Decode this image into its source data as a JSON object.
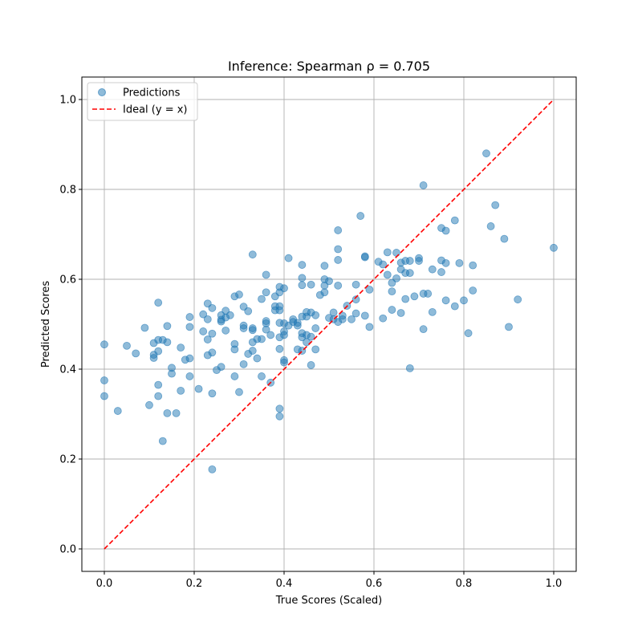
{
  "chart_data": {
    "type": "scatter",
    "title": "Inference: Spearman ρ = 0.705",
    "xlabel": "True Scores (Scaled)",
    "ylabel": "Predicted Scores",
    "xlim": [
      -0.05,
      1.05
    ],
    "ylim": [
      -0.05,
      1.05
    ],
    "x_ticks": [
      0.0,
      0.2,
      0.4,
      0.6,
      0.8,
      1.0
    ],
    "x_tick_labels": [
      "0.0",
      "0.2",
      "0.4",
      "0.6",
      "0.8",
      "1.0"
    ],
    "y_ticks": [
      0.0,
      0.2,
      0.4,
      0.6,
      0.8,
      1.0
    ],
    "y_tick_labels": [
      "0.0",
      "0.2",
      "0.4",
      "0.6",
      "0.8",
      "1.0"
    ],
    "grid": true,
    "legend": {
      "position": "top-left",
      "entries": [
        {
          "label": "Predictions",
          "marker": "circle"
        },
        {
          "label": "Ideal (y = x)",
          "marker": "dashed-line"
        }
      ]
    },
    "colors": {
      "points": "#1f77b4",
      "ideal": "#ff0000",
      "grid": "#b0b0b0"
    },
    "ideal_line": {
      "x": [
        0.0,
        1.0
      ],
      "y": [
        0.0,
        1.0
      ]
    },
    "series": [
      {
        "name": "Predictions",
        "points": [
          [
            0.0,
            0.455
          ],
          [
            0.0,
            0.375
          ],
          [
            0.0,
            0.34
          ],
          [
            0.03,
            0.307
          ],
          [
            0.05,
            0.452
          ],
          [
            0.07,
            0.435
          ],
          [
            0.09,
            0.492
          ],
          [
            0.1,
            0.32
          ],
          [
            0.11,
            0.458
          ],
          [
            0.11,
            0.432
          ],
          [
            0.11,
            0.425
          ],
          [
            0.12,
            0.548
          ],
          [
            0.12,
            0.465
          ],
          [
            0.12,
            0.44
          ],
          [
            0.12,
            0.365
          ],
          [
            0.12,
            0.34
          ],
          [
            0.13,
            0.24
          ],
          [
            0.13,
            0.465
          ],
          [
            0.14,
            0.496
          ],
          [
            0.14,
            0.46
          ],
          [
            0.14,
            0.302
          ],
          [
            0.15,
            0.403
          ],
          [
            0.15,
            0.39
          ],
          [
            0.16,
            0.302
          ],
          [
            0.17,
            0.448
          ],
          [
            0.17,
            0.352
          ],
          [
            0.18,
            0.421
          ],
          [
            0.19,
            0.516
          ],
          [
            0.19,
            0.494
          ],
          [
            0.19,
            0.424
          ],
          [
            0.19,
            0.384
          ],
          [
            0.21,
            0.356
          ],
          [
            0.22,
            0.522
          ],
          [
            0.22,
            0.484
          ],
          [
            0.23,
            0.546
          ],
          [
            0.23,
            0.511
          ],
          [
            0.23,
            0.466
          ],
          [
            0.23,
            0.431
          ],
          [
            0.24,
            0.536
          ],
          [
            0.24,
            0.479
          ],
          [
            0.24,
            0.437
          ],
          [
            0.24,
            0.346
          ],
          [
            0.24,
            0.177
          ],
          [
            0.25,
            0.398
          ],
          [
            0.26,
            0.52
          ],
          [
            0.26,
            0.51
          ],
          [
            0.26,
            0.506
          ],
          [
            0.26,
            0.405
          ],
          [
            0.27,
            0.53
          ],
          [
            0.27,
            0.515
          ],
          [
            0.27,
            0.486
          ],
          [
            0.28,
            0.52
          ],
          [
            0.29,
            0.562
          ],
          [
            0.29,
            0.456
          ],
          [
            0.29,
            0.444
          ],
          [
            0.29,
            0.384
          ],
          [
            0.3,
            0.566
          ],
          [
            0.3,
            0.349
          ],
          [
            0.31,
            0.539
          ],
          [
            0.31,
            0.497
          ],
          [
            0.31,
            0.491
          ],
          [
            0.31,
            0.411
          ],
          [
            0.32,
            0.529
          ],
          [
            0.32,
            0.434
          ],
          [
            0.33,
            0.655
          ],
          [
            0.33,
            0.491
          ],
          [
            0.33,
            0.487
          ],
          [
            0.33,
            0.46
          ],
          [
            0.33,
            0.441
          ],
          [
            0.34,
            0.467
          ],
          [
            0.34,
            0.424
          ],
          [
            0.35,
            0.556
          ],
          [
            0.35,
            0.467
          ],
          [
            0.35,
            0.384
          ],
          [
            0.36,
            0.61
          ],
          [
            0.36,
            0.571
          ],
          [
            0.36,
            0.507
          ],
          [
            0.36,
            0.502
          ],
          [
            0.36,
            0.488
          ],
          [
            0.37,
            0.476
          ],
          [
            0.37,
            0.37
          ],
          [
            0.38,
            0.562
          ],
          [
            0.38,
            0.54
          ],
          [
            0.38,
            0.531
          ],
          [
            0.39,
            0.583
          ],
          [
            0.39,
            0.571
          ],
          [
            0.39,
            0.54
          ],
          [
            0.39,
            0.531
          ],
          [
            0.39,
            0.503
          ],
          [
            0.39,
            0.471
          ],
          [
            0.39,
            0.445
          ],
          [
            0.39,
            0.312
          ],
          [
            0.39,
            0.295
          ],
          [
            0.4,
            0.58
          ],
          [
            0.4,
            0.502
          ],
          [
            0.4,
            0.484
          ],
          [
            0.4,
            0.476
          ],
          [
            0.4,
            0.42
          ],
          [
            0.4,
            0.415
          ],
          [
            0.41,
            0.647
          ],
          [
            0.41,
            0.497
          ],
          [
            0.42,
            0.511
          ],
          [
            0.42,
            0.505
          ],
          [
            0.43,
            0.503
          ],
          [
            0.43,
            0.497
          ],
          [
            0.43,
            0.444
          ],
          [
            0.44,
            0.632
          ],
          [
            0.44,
            0.603
          ],
          [
            0.44,
            0.587
          ],
          [
            0.44,
            0.517
          ],
          [
            0.44,
            0.48
          ],
          [
            0.44,
            0.471
          ],
          [
            0.44,
            0.441
          ],
          [
            0.45,
            0.527
          ],
          [
            0.45,
            0.517
          ],
          [
            0.45,
            0.476
          ],
          [
            0.45,
            0.46
          ],
          [
            0.46,
            0.588
          ],
          [
            0.46,
            0.526
          ],
          [
            0.46,
            0.472
          ],
          [
            0.46,
            0.409
          ],
          [
            0.47,
            0.52
          ],
          [
            0.47,
            0.491
          ],
          [
            0.47,
            0.444
          ],
          [
            0.48,
            0.565
          ],
          [
            0.49,
            0.63
          ],
          [
            0.49,
            0.6
          ],
          [
            0.49,
            0.586
          ],
          [
            0.49,
            0.571
          ],
          [
            0.5,
            0.596
          ],
          [
            0.5,
            0.514
          ],
          [
            0.51,
            0.526
          ],
          [
            0.51,
            0.511
          ],
          [
            0.52,
            0.709
          ],
          [
            0.52,
            0.667
          ],
          [
            0.52,
            0.643
          ],
          [
            0.52,
            0.586
          ],
          [
            0.52,
            0.505
          ],
          [
            0.53,
            0.519
          ],
          [
            0.53,
            0.511
          ],
          [
            0.54,
            0.541
          ],
          [
            0.55,
            0.511
          ],
          [
            0.56,
            0.588
          ],
          [
            0.56,
            0.555
          ],
          [
            0.56,
            0.524
          ],
          [
            0.57,
            0.741
          ],
          [
            0.58,
            0.651
          ],
          [
            0.58,
            0.649
          ],
          [
            0.58,
            0.519
          ],
          [
            0.59,
            0.577
          ],
          [
            0.59,
            0.494
          ],
          [
            0.61,
            0.639
          ],
          [
            0.62,
            0.633
          ],
          [
            0.62,
            0.513
          ],
          [
            0.63,
            0.66
          ],
          [
            0.63,
            0.61
          ],
          [
            0.64,
            0.592
          ],
          [
            0.64,
            0.573
          ],
          [
            0.64,
            0.532
          ],
          [
            0.65,
            0.659
          ],
          [
            0.65,
            0.602
          ],
          [
            0.66,
            0.637
          ],
          [
            0.66,
            0.622
          ],
          [
            0.66,
            0.525
          ],
          [
            0.67,
            0.641
          ],
          [
            0.67,
            0.614
          ],
          [
            0.67,
            0.556
          ],
          [
            0.68,
            0.641
          ],
          [
            0.68,
            0.614
          ],
          [
            0.68,
            0.402
          ],
          [
            0.69,
            0.562
          ],
          [
            0.7,
            0.647
          ],
          [
            0.7,
            0.641
          ],
          [
            0.71,
            0.809
          ],
          [
            0.71,
            0.568
          ],
          [
            0.71,
            0.489
          ],
          [
            0.72,
            0.568
          ],
          [
            0.73,
            0.622
          ],
          [
            0.73,
            0.527
          ],
          [
            0.75,
            0.714
          ],
          [
            0.75,
            0.642
          ],
          [
            0.75,
            0.616
          ],
          [
            0.76,
            0.708
          ],
          [
            0.76,
            0.636
          ],
          [
            0.76,
            0.553
          ],
          [
            0.78,
            0.731
          ],
          [
            0.78,
            0.54
          ],
          [
            0.79,
            0.636
          ],
          [
            0.8,
            0.553
          ],
          [
            0.81,
            0.48
          ],
          [
            0.82,
            0.631
          ],
          [
            0.82,
            0.575
          ],
          [
            0.85,
            0.88
          ],
          [
            0.86,
            0.718
          ],
          [
            0.87,
            0.765
          ],
          [
            0.89,
            0.69
          ],
          [
            0.9,
            0.494
          ],
          [
            0.92,
            0.555
          ],
          [
            1.0,
            0.67
          ]
        ]
      }
    ]
  }
}
